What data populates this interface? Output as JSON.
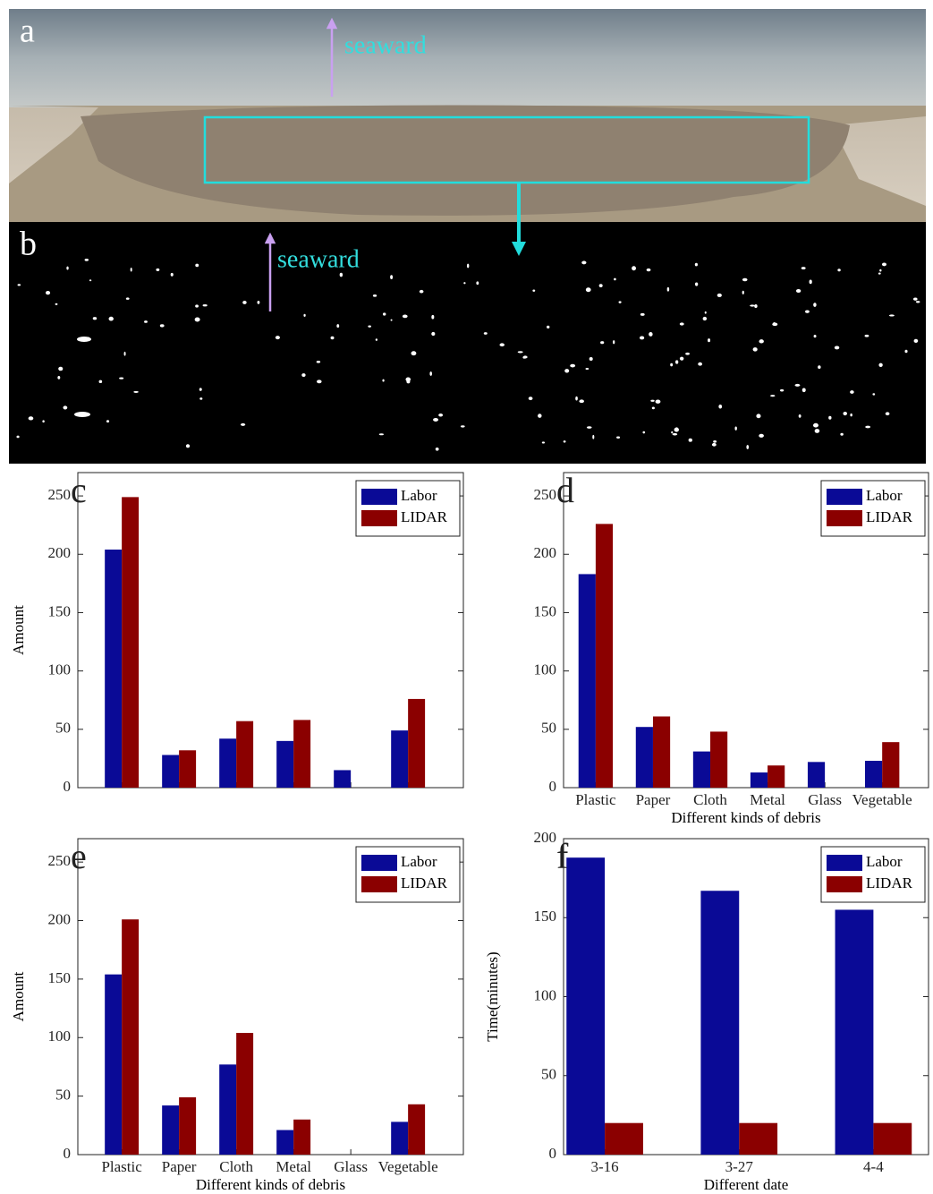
{
  "photos": [
    {
      "label": "a",
      "annotation": "seaward"
    },
    {
      "label": "b",
      "annotation": "seaward"
    }
  ],
  "chart_data": [
    {
      "type": "bar",
      "panel_label": "c",
      "y_label": "Amount",
      "categories": [
        null,
        null,
        null,
        null,
        null,
        null
      ],
      "series": [
        {
          "name": "Labor",
          "color": "#0a0a96",
          "values": [
            204,
            28,
            42,
            40,
            15,
            49
          ]
        },
        {
          "name": "LIDAR",
          "color": "#8b0000",
          "values": [
            249,
            32,
            57,
            58,
            0,
            76
          ]
        }
      ],
      "ylim": [
        0,
        270
      ],
      "yticks": [
        0,
        50,
        100,
        150,
        200,
        250
      ],
      "legend": "upper-right"
    },
    {
      "type": "bar",
      "panel_label": "d",
      "x_label": "Different kinds of debris",
      "categories": [
        "Plastic",
        "Paper",
        "Cloth",
        "Metal",
        "Glass",
        "Vegetable"
      ],
      "series": [
        {
          "name": "Labor",
          "color": "#0a0a96",
          "values": [
            183,
            52,
            31,
            13,
            22,
            23
          ]
        },
        {
          "name": "LIDAR",
          "color": "#8b0000",
          "values": [
            226,
            61,
            48,
            19,
            0,
            39
          ]
        }
      ],
      "ylim": [
        0,
        270
      ],
      "yticks": [
        0,
        50,
        100,
        150,
        200,
        250
      ],
      "legend": "upper-right"
    },
    {
      "type": "bar",
      "panel_label": "e",
      "y_label": "Amount",
      "x_label": "Different kinds of debris",
      "categories": [
        "Plastic",
        "Paper",
        "Cloth",
        "Metal",
        "Glass",
        "Vegetable"
      ],
      "series": [
        {
          "name": "Labor",
          "color": "#0a0a96",
          "values": [
            154,
            42,
            77,
            21,
            0,
            28
          ]
        },
        {
          "name": "LIDAR",
          "color": "#8b0000",
          "values": [
            201,
            49,
            104,
            30,
            0,
            43
          ]
        }
      ],
      "ylim": [
        0,
        270
      ],
      "yticks": [
        0,
        50,
        100,
        150,
        200,
        250
      ],
      "legend": "upper-right"
    },
    {
      "type": "bar",
      "panel_label": "f",
      "y_label": "Time(minutes)",
      "x_label": "Different date",
      "categories": [
        "3-16",
        "3-27",
        "4-4"
      ],
      "series": [
        {
          "name": "Labor",
          "color": "#0a0a96",
          "values": [
            188,
            167,
            155
          ]
        },
        {
          "name": "LIDAR",
          "color": "#8b0000",
          "values": [
            20,
            20,
            20
          ]
        }
      ],
      "ylim": [
        0,
        200
      ],
      "yticks": [
        0,
        50,
        100,
        150,
        200
      ],
      "legend": "upper-right"
    }
  ]
}
